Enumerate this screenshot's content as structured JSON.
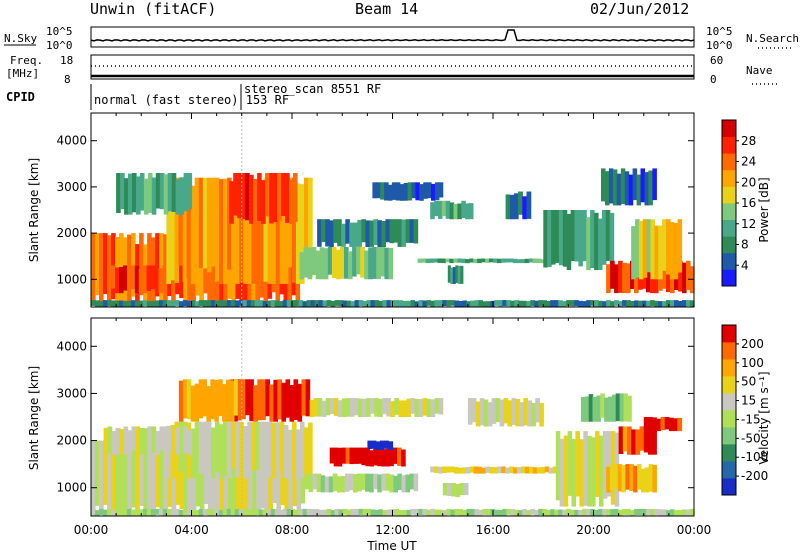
{
  "header": {
    "station": "Unwin (fitACF)",
    "beam": "Beam 14",
    "date": "02/Jun/2012"
  },
  "top_panels": {
    "nsky_label": "N.Sky",
    "nsearch_label": "N.Search",
    "noise_tick_high": "10^5",
    "noise_tick_low": "10^0",
    "freq_label": "Freq.",
    "freq_unit": "[MHz]",
    "freq_tick_high": "18",
    "freq_tick_low": "8",
    "nave_label": "Nave",
    "nave_tick_high": "60",
    "nave_tick_low": "0",
    "cpid_label": "CPID",
    "cpid_mode1": "normal (fast stereo) 153 RF",
    "cpid_mode2": "stereo_scan 8551 RF"
  },
  "chart_data": [
    {
      "type": "heatmap",
      "name": "power",
      "ylabel": "Slant Range [km]",
      "xlabel": "",
      "y_ticks": [
        "1000",
        "2000",
        "3000",
        "4000"
      ],
      "ylim": [
        400,
        4600
      ],
      "xlim_hours": [
        0,
        24
      ],
      "colorbar_label": "Power [dB]",
      "colorbar_ticks": [
        "4",
        "8",
        "12",
        "16",
        "20",
        "24",
        "28"
      ],
      "colors": [
        "#1a1aff",
        "#1f5aa8",
        "#2e8b57",
        "#4aa88a",
        "#7fc97f",
        "#e8d21a",
        "#ffa500",
        "#ff6a00",
        "#ff2200",
        "#d40000"
      ],
      "regions": [
        {
          "t0": 0.0,
          "t1": 8.3,
          "r0": 450,
          "r1": 2000,
          "level": 7
        },
        {
          "t0": 0.8,
          "t1": 3.0,
          "r0": 700,
          "r1": 1300,
          "level": 8
        },
        {
          "t0": 3.0,
          "t1": 8.8,
          "r0": 900,
          "r1": 3200,
          "level": 6
        },
        {
          "t0": 5.5,
          "t1": 8.2,
          "r0": 2200,
          "r1": 3300,
          "level": 8
        },
        {
          "t0": 1.0,
          "t1": 4.0,
          "r0": 2400,
          "r1": 3300,
          "level": 3
        },
        {
          "t0": 8.3,
          "t1": 12.0,
          "r0": 1000,
          "r1": 1700,
          "level": 4
        },
        {
          "t0": 9.0,
          "t1": 13.0,
          "r0": 1700,
          "r1": 2300,
          "level": 2
        },
        {
          "t0": 11.2,
          "t1": 14.0,
          "r0": 2700,
          "r1": 3100,
          "level": 1
        },
        {
          "t0": 13.5,
          "t1": 15.2,
          "r0": 2300,
          "r1": 2700,
          "level": 3
        },
        {
          "t0": 13.0,
          "t1": 19.0,
          "r0": 1350,
          "r1": 1450,
          "level": 3
        },
        {
          "t0": 14.2,
          "t1": 14.8,
          "r0": 900,
          "r1": 1300,
          "level": 2
        },
        {
          "t0": 16.5,
          "t1": 17.5,
          "r0": 2300,
          "r1": 2900,
          "level": 1
        },
        {
          "t0": 18.0,
          "t1": 20.8,
          "r0": 1200,
          "r1": 2500,
          "level": 3
        },
        {
          "t0": 20.3,
          "t1": 22.5,
          "r0": 2600,
          "r1": 3400,
          "level": 1
        },
        {
          "t0": 20.5,
          "t1": 24.0,
          "r0": 700,
          "r1": 1400,
          "level": 8
        },
        {
          "t0": 21.5,
          "t1": 23.5,
          "r0": 1000,
          "r1": 2300,
          "level": 5
        },
        {
          "t0": 0.0,
          "t1": 24.0,
          "r0": 400,
          "r1": 550,
          "level": 2
        }
      ]
    },
    {
      "type": "heatmap",
      "name": "velocity",
      "ylabel": "Slant Range [km]",
      "xlabel": "Time UT",
      "y_ticks": [
        "1000",
        "2000",
        "3000",
        "4000"
      ],
      "ylim": [
        400,
        4600
      ],
      "xlim_hours": [
        0,
        24
      ],
      "x_tick_labels": [
        "00:00",
        "04:00",
        "08:00",
        "12:00",
        "16:00",
        "20:00",
        "00:00"
      ],
      "colorbar_label": "Velocity [m s⁻¹]",
      "colorbar_ticks": [
        "200",
        "100",
        "50",
        "15",
        "-15",
        "-50",
        "-100",
        "-200"
      ],
      "colors": [
        "#1a2cc8",
        "#2468a8",
        "#2e8b57",
        "#7fc97f",
        "#b0e05a",
        "#c8c8c0",
        "#e8d21a",
        "#ffa500",
        "#ff6a00",
        "#e00000"
      ],
      "regions": [
        {
          "t0": 0.0,
          "t1": 8.5,
          "r0": 400,
          "r1": 2000,
          "level": 5
        },
        {
          "t0": 3.0,
          "t1": 8.8,
          "r0": 1200,
          "r1": 2400,
          "level": 5
        },
        {
          "t0": 0.5,
          "t1": 4.0,
          "r0": 1700,
          "r1": 2300,
          "level": 5
        },
        {
          "t0": 5.5,
          "t1": 8.7,
          "r0": 2400,
          "r1": 3300,
          "level": 9
        },
        {
          "t0": 3.5,
          "t1": 6.0,
          "r0": 2400,
          "r1": 3300,
          "level": 7
        },
        {
          "t0": 8.7,
          "t1": 14.0,
          "r0": 2500,
          "r1": 2900,
          "level": 5
        },
        {
          "t0": 9.5,
          "t1": 12.5,
          "r0": 1450,
          "r1": 1850,
          "level": 9
        },
        {
          "t0": 11.0,
          "t1": 12.0,
          "r0": 1800,
          "r1": 2000,
          "level": 0
        },
        {
          "t0": 8.5,
          "t1": 13.0,
          "r0": 900,
          "r1": 1300,
          "level": 4
        },
        {
          "t0": 13.5,
          "t1": 19.0,
          "r0": 1300,
          "r1": 1450,
          "level": 6
        },
        {
          "t0": 14.0,
          "t1": 15.0,
          "r0": 800,
          "r1": 1100,
          "level": 5
        },
        {
          "t0": 15.0,
          "t1": 18.0,
          "r0": 2300,
          "r1": 2900,
          "level": 5
        },
        {
          "t0": 18.5,
          "t1": 21.0,
          "r0": 600,
          "r1": 2200,
          "level": 5
        },
        {
          "t0": 20.5,
          "t1": 22.5,
          "r0": 900,
          "r1": 1500,
          "level": 7
        },
        {
          "t0": 21.0,
          "t1": 22.5,
          "r0": 1700,
          "r1": 2300,
          "level": 8
        },
        {
          "t0": 22.0,
          "t1": 23.5,
          "r0": 2200,
          "r1": 2500,
          "level": 9
        },
        {
          "t0": 19.5,
          "t1": 21.5,
          "r0": 2400,
          "r1": 3000,
          "level": 3
        },
        {
          "t0": 0.0,
          "t1": 24.0,
          "r0": 400,
          "r1": 550,
          "level": 4
        }
      ]
    }
  ]
}
